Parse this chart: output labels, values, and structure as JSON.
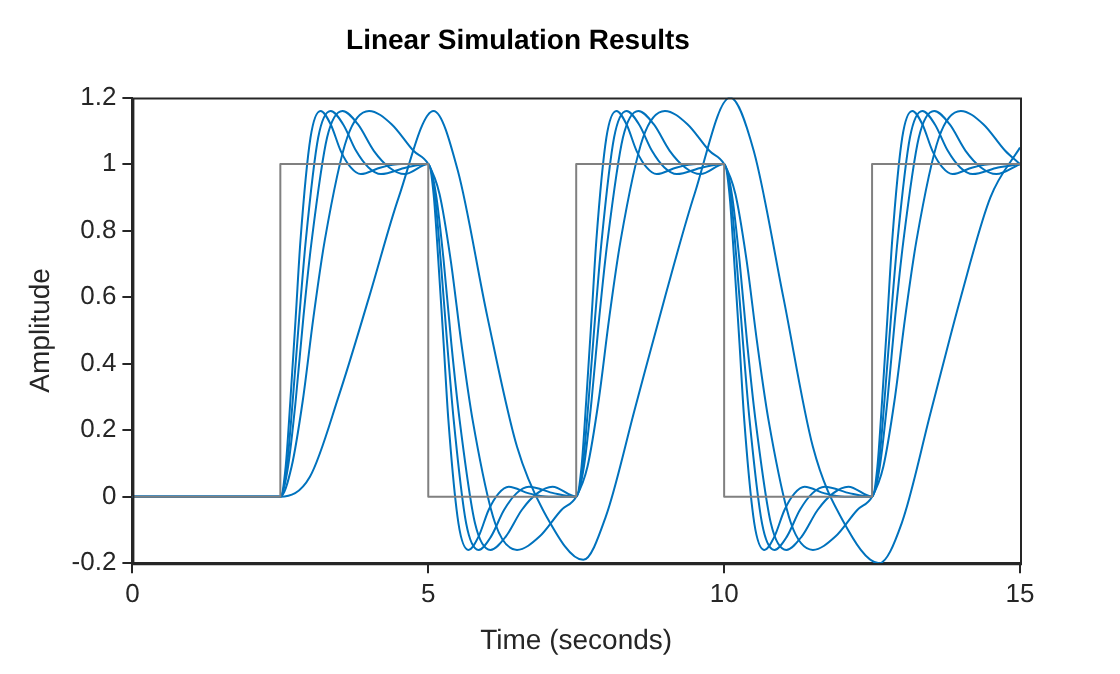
{
  "chart_data": {
    "type": "line",
    "title": "Linear Simulation Results",
    "xlabel": "Time (seconds)",
    "ylabel": "Amplitude",
    "xlim": [
      0,
      15
    ],
    "xticks": [
      0,
      5,
      10,
      15
    ],
    "ylim": [
      -0.2,
      1.2
    ],
    "yticks": [
      -0.2,
      0,
      0.2,
      0.4,
      0.6,
      0.8,
      1,
      1.2
    ],
    "grid": false,
    "legend": false,
    "marker": "none",
    "line_style": "solid",
    "series": [
      {
        "color": "#808080",
        "x": [
          0,
          2.5,
          2.5,
          5,
          5,
          7.5,
          7.5,
          10,
          10,
          12.5,
          12.5,
          15
        ],
        "values": [
          0,
          0,
          1,
          1,
          0,
          0,
          1,
          1,
          0,
          0,
          1,
          1
        ]
      },
      {
        "color": "#0072bd",
        "x": [
          0,
          2.5,
          2.59,
          2.67,
          2.76,
          2.84,
          3.01,
          3.18,
          3.35,
          3.52,
          3.69,
          3.86,
          4.2,
          4.54,
          5,
          5.09,
          5.17,
          5.26,
          5.34,
          5.51,
          5.68,
          5.85,
          6.02,
          6.19,
          6.36,
          6.7,
          7.04,
          7.5,
          7.59,
          7.67,
          7.76,
          7.84,
          8.01,
          8.18,
          8.35,
          8.52,
          8.69,
          8.86,
          9.2,
          9.54,
          10,
          10.09,
          10.17,
          10.26,
          10.34,
          10.51,
          10.68,
          10.85,
          11.02,
          11.19,
          11.36,
          11.7,
          12.04,
          12.5,
          12.59,
          12.67,
          12.76,
          12.84,
          13.01,
          13.18,
          13.35,
          13.52,
          13.69,
          13.86,
          14.2,
          14.54,
          15
        ],
        "values": [
          0,
          0,
          0.09,
          0.29,
          0.54,
          0.77,
          1.08,
          1.16,
          1.12,
          1.04,
          0.99,
          0.97,
          0.99,
          1,
          1,
          0.91,
          0.71,
          0.46,
          0.23,
          -0.08,
          -0.16,
          -0.12,
          -0.04,
          0.01,
          0.03,
          0.01,
          0,
          0,
          0.09,
          0.29,
          0.54,
          0.77,
          1.08,
          1.16,
          1.12,
          1.04,
          0.99,
          0.97,
          0.99,
          1,
          1,
          0.91,
          0.71,
          0.46,
          0.23,
          -0.08,
          -0.16,
          -0.12,
          -0.04,
          0.01,
          0.03,
          0.01,
          0,
          0,
          0.09,
          0.29,
          0.54,
          0.77,
          1.08,
          1.16,
          1.12,
          1.04,
          0.99,
          0.97,
          0.99,
          1,
          1
        ]
      },
      {
        "color": "#0072bd",
        "x": [
          0,
          2.5,
          2.61,
          2.71,
          2.82,
          2.93,
          3.14,
          3.35,
          3.56,
          3.78,
          3.99,
          4.2,
          4.63,
          5,
          5.11,
          5.21,
          5.32,
          5.43,
          5.64,
          5.85,
          6.06,
          6.28,
          6.49,
          6.7,
          7.13,
          7.5,
          7.61,
          7.71,
          7.82,
          7.93,
          8.14,
          8.35,
          8.56,
          8.78,
          8.99,
          9.2,
          9.63,
          10,
          10.11,
          10.21,
          10.32,
          10.43,
          10.64,
          10.85,
          11.06,
          11.28,
          11.49,
          11.7,
          12.13,
          12.5,
          12.61,
          12.71,
          12.82,
          12.93,
          13.14,
          13.35,
          13.56,
          13.78,
          13.99,
          14.2,
          14.63,
          15
        ],
        "values": [
          0,
          0,
          0.09,
          0.29,
          0.54,
          0.77,
          1.08,
          1.16,
          1.12,
          1.04,
          0.99,
          0.97,
          0.99,
          1,
          0.91,
          0.71,
          0.46,
          0.23,
          -0.08,
          -0.16,
          -0.12,
          -0.04,
          0.01,
          0.03,
          0.01,
          0,
          0.09,
          0.29,
          0.54,
          0.77,
          1.08,
          1.16,
          1.12,
          1.04,
          0.99,
          0.97,
          0.99,
          1,
          0.91,
          0.71,
          0.46,
          0.23,
          -0.08,
          -0.16,
          -0.12,
          -0.04,
          0.01,
          0.03,
          0.01,
          0,
          0.09,
          0.29,
          0.54,
          0.77,
          1.08,
          1.16,
          1.12,
          1.04,
          0.99,
          0.97,
          0.99,
          1
        ]
      },
      {
        "color": "#0072bd",
        "x": [
          0,
          2.5,
          2.63,
          2.76,
          2.89,
          3.03,
          3.29,
          3.55,
          3.81,
          4.08,
          4.34,
          4.6,
          5,
          5.13,
          5.26,
          5.39,
          5.53,
          5.79,
          6.05,
          6.31,
          6.58,
          6.84,
          7.1,
          7.5,
          7.63,
          7.76,
          7.89,
          8.03,
          8.29,
          8.55,
          8.81,
          9.08,
          9.34,
          9.6,
          10,
          10.13,
          10.26,
          10.39,
          10.53,
          10.79,
          11.05,
          11.31,
          11.58,
          11.84,
          12.1,
          12.5,
          12.63,
          12.76,
          12.89,
          13.03,
          13.29,
          13.55,
          13.81,
          14.08,
          14.34,
          14.6,
          15
        ],
        "values": [
          0,
          0,
          0.09,
          0.29,
          0.54,
          0.77,
          1.08,
          1.16,
          1.12,
          1.04,
          0.99,
          0.97,
          1,
          0.91,
          0.71,
          0.46,
          0.23,
          -0.08,
          -0.16,
          -0.12,
          -0.04,
          0.01,
          0.03,
          0,
          0.09,
          0.29,
          0.54,
          0.77,
          1.08,
          1.16,
          1.12,
          1.04,
          0.99,
          0.97,
          1,
          0.91,
          0.71,
          0.46,
          0.23,
          -0.08,
          -0.16,
          -0.12,
          -0.04,
          0.01,
          0.03,
          0,
          0.09,
          0.29,
          0.54,
          0.77,
          1.08,
          1.16,
          1.12,
          1.04,
          0.99,
          0.97,
          1
        ]
      },
      {
        "color": "#0072bd",
        "x": [
          0,
          2.5,
          2.69,
          2.88,
          3.06,
          3.25,
          3.63,
          4,
          4.38,
          4.75,
          5,
          5.19,
          5.38,
          5.56,
          5.75,
          6.13,
          6.5,
          6.88,
          7.25,
          7.5,
          7.69,
          7.88,
          8.06,
          8.25,
          8.63,
          9,
          9.38,
          9.75,
          10,
          10.19,
          10.38,
          10.56,
          10.75,
          11.13,
          11.5,
          11.88,
          12.25,
          12.5,
          12.69,
          12.88,
          13.06,
          13.25,
          13.63,
          14,
          14.38,
          14.75,
          15
        ],
        "values": [
          0,
          0,
          0.09,
          0.29,
          0.54,
          0.77,
          1.08,
          1.16,
          1.12,
          1.04,
          1,
          0.91,
          0.71,
          0.46,
          0.23,
          -0.08,
          -0.16,
          -0.12,
          -0.04,
          0,
          0.09,
          0.29,
          0.54,
          0.77,
          1.08,
          1.16,
          1.12,
          1.04,
          1,
          0.91,
          0.71,
          0.46,
          0.23,
          -0.08,
          -0.16,
          -0.12,
          -0.04,
          0,
          0.09,
          0.29,
          0.54,
          0.77,
          1.08,
          1.16,
          1.12,
          1.04,
          1
        ]
      },
      {
        "color": "#0072bd",
        "x": [
          0,
          2.5,
          3,
          3.5,
          4,
          4.5,
          5.09,
          5.5,
          6,
          6.5,
          7,
          7.62,
          8,
          8.5,
          9,
          9.5,
          10.1,
          10.5,
          11,
          11.5,
          12,
          12.62,
          13,
          13.5,
          14,
          14.5,
          15
        ],
        "values": [
          0,
          0,
          0.06,
          0.31,
          0.6,
          0.9,
          1.16,
          0.98,
          0.54,
          0.15,
          -0.06,
          -0.19,
          -0.06,
          0.27,
          0.6,
          0.91,
          1.2,
          1.04,
          0.6,
          0.15,
          -0.07,
          -0.2,
          -0.08,
          0.26,
          0.6,
          0.9,
          1.05
        ]
      }
    ]
  }
}
